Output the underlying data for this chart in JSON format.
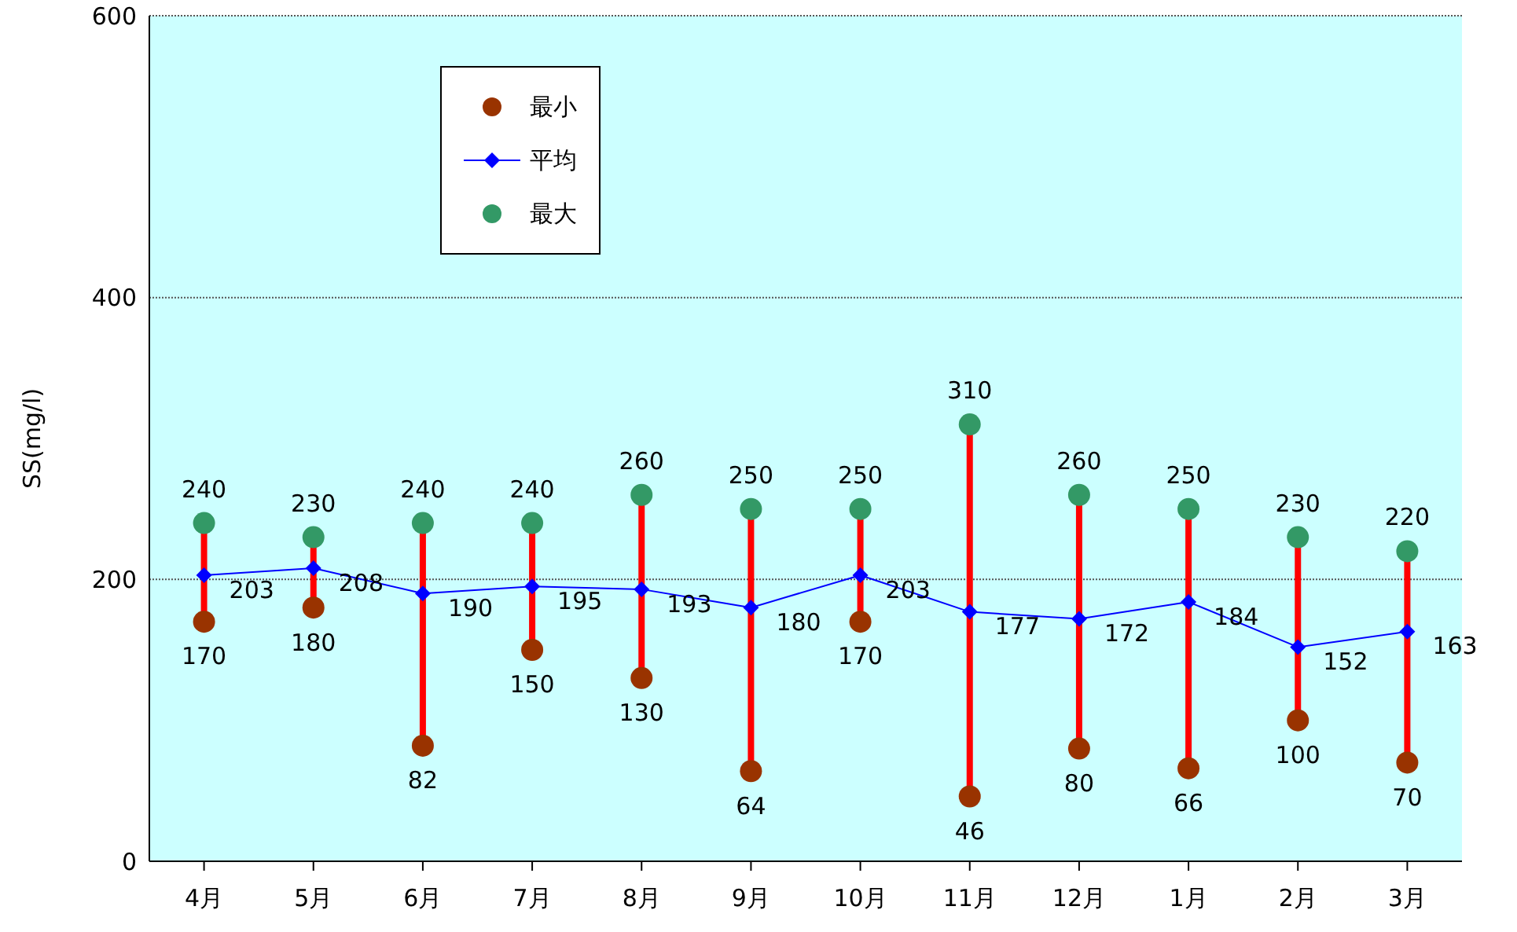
{
  "chart_data": {
    "type": "line",
    "categories": [
      "4月",
      "5月",
      "6月",
      "7月",
      "8月",
      "9月",
      "10月",
      "11月",
      "12月",
      "1月",
      "2月",
      "3月"
    ],
    "ylabel": "SS(mg/l)",
    "ylim": [
      0,
      600
    ],
    "yticks": [
      0,
      200,
      400,
      600
    ],
    "grid": "y",
    "legend": "top left",
    "series": [
      {
        "type": "scatter",
        "name": "最小",
        "color": "#993300",
        "marker": "circle",
        "data_labels": true,
        "values": [
          170,
          180,
          82,
          150,
          130,
          64,
          170,
          46,
          80,
          66,
          100,
          70
        ]
      },
      {
        "name": "平均",
        "color": "#0000ff",
        "marker": "diamond",
        "data_labels": true,
        "values": [
          203,
          208,
          190,
          195,
          193,
          180,
          203,
          177,
          172,
          184,
          152,
          163
        ]
      },
      {
        "type": "scatter",
        "name": "最大",
        "color": "#339966",
        "marker": "circle",
        "data_labels": true,
        "values": [
          240,
          230,
          240,
          240,
          260,
          250,
          250,
          310,
          260,
          250,
          230,
          220
        ]
      }
    ]
  }
}
